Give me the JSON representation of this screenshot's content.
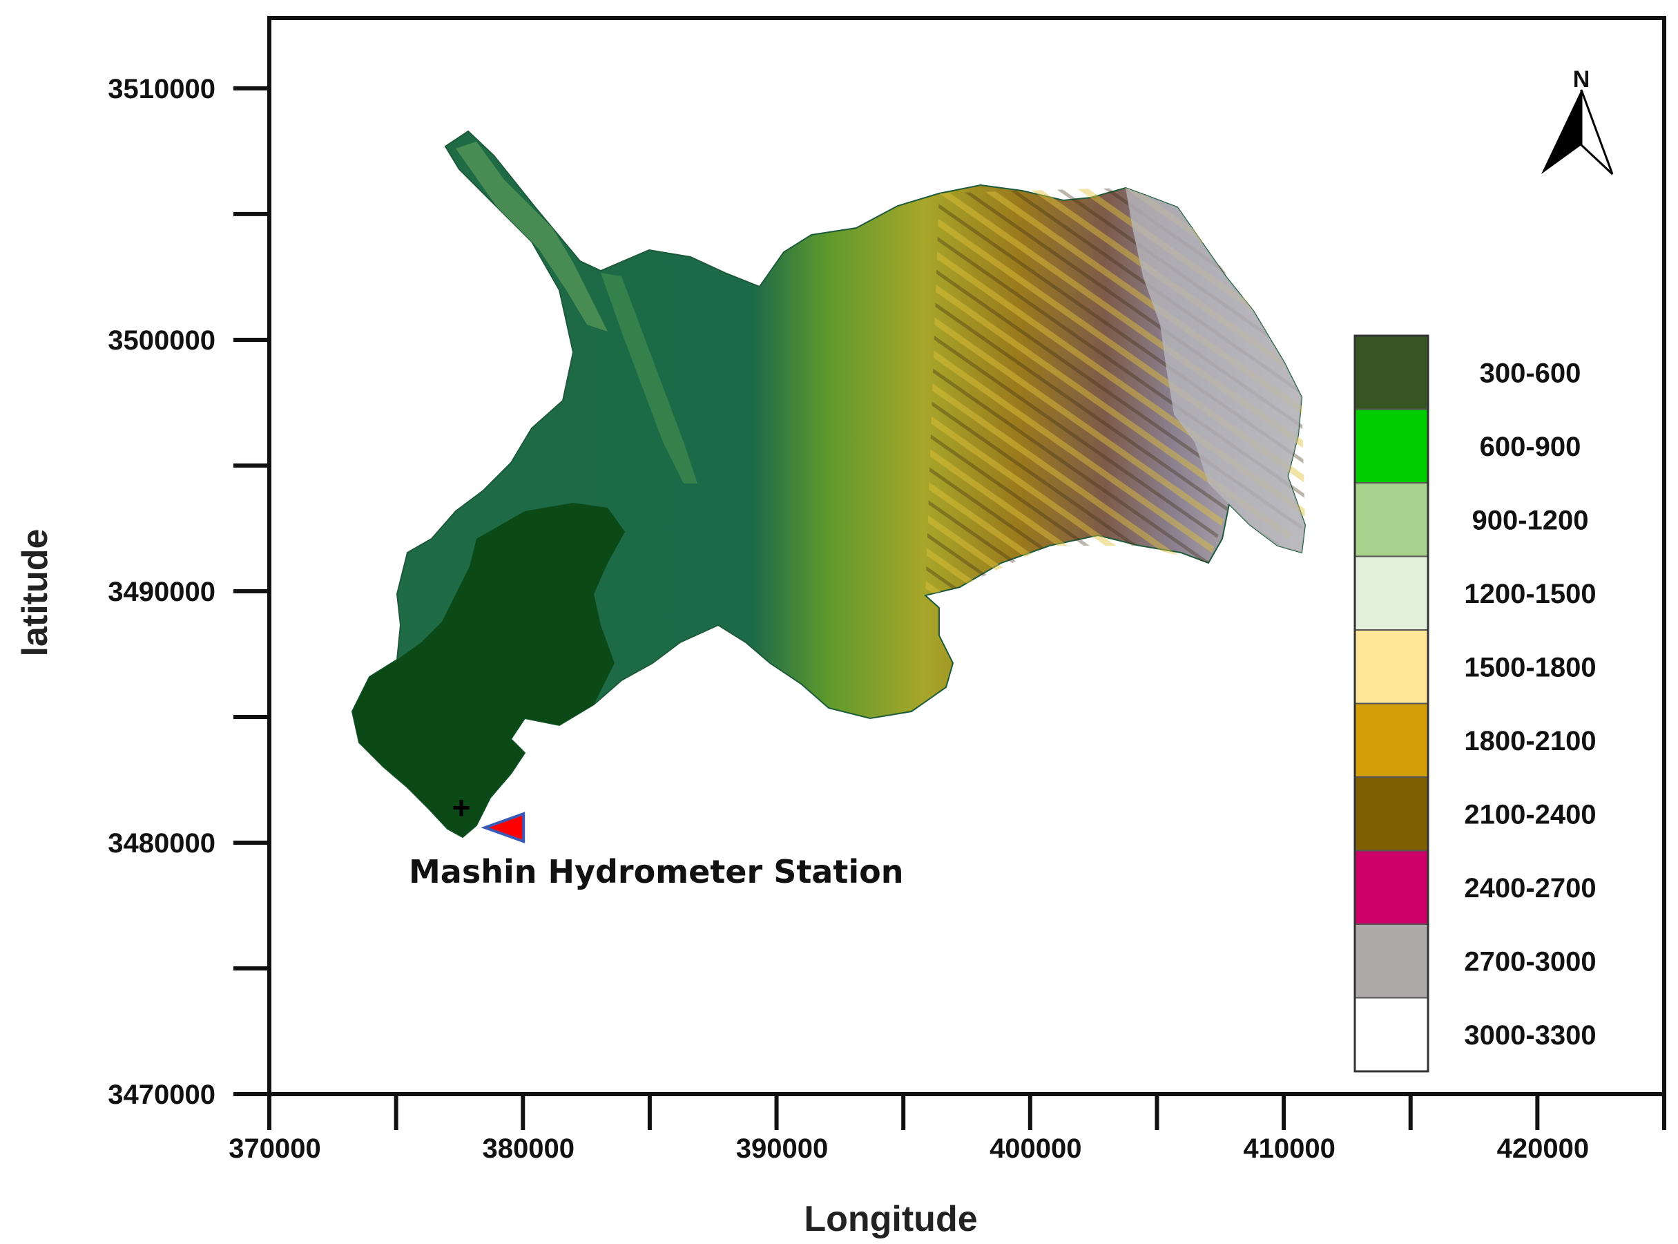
{
  "chart_data": {
    "type": "map",
    "xlabel": "Longitude",
    "ylabel": "latitude",
    "x_ticks": [
      "370000",
      "380000",
      "390000",
      "400000",
      "410000",
      "420000"
    ],
    "y_ticks": [
      "3510000",
      "3500000",
      "3490000",
      "3480000",
      "3470000"
    ],
    "xlim": [
      370000,
      425000
    ],
    "ylim": [
      3470000,
      3512800
    ],
    "legend_placement": "right",
    "legend": [
      {
        "label": "300-600",
        "color": "#375623"
      },
      {
        "label": "600-900",
        "color": "#00cc00"
      },
      {
        "label": "900-1200",
        "color": "#a9d18e"
      },
      {
        "label": "1200-1500",
        "color": "#e2efda"
      },
      {
        "label": "1500-1800",
        "color": "#ffe699"
      },
      {
        "label": "1800-2100",
        "color": "#d4a00a"
      },
      {
        "label": "2100-2400",
        "color": "#7f6000"
      },
      {
        "label": "2400-2700",
        "color": "#cc0066"
      },
      {
        "label": "2700-3000",
        "color": "#aeaaaa"
      },
      {
        "label": "3000-3300",
        "color": "#ffffff"
      }
    ],
    "station": {
      "label": "Mashin Hydrometer Station",
      "x": 378500,
      "y": 3480600,
      "marker_color": "#ff0000"
    },
    "north_arrow": {
      "label": "N"
    }
  }
}
